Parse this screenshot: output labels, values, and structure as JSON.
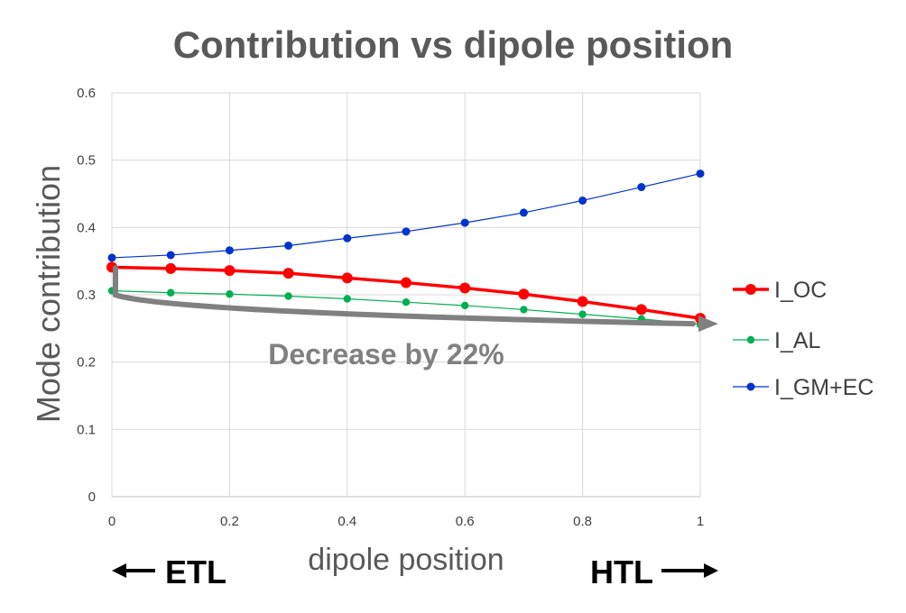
{
  "chart_data": {
    "type": "line",
    "title": "Contribution vs dipole position",
    "xlabel": "dipole position",
    "ylabel": "Mode contribution",
    "xlim": [
      0,
      1
    ],
    "ylim": [
      0,
      0.6
    ],
    "x_ticks": [
      "0",
      "0.2",
      "0.4",
      "0.6",
      "0.8",
      "1"
    ],
    "y_ticks": [
      "0",
      "0.1",
      "0.2",
      "0.3",
      "0.4",
      "0.5",
      "0.6"
    ],
    "grid": true,
    "legend_position": "right",
    "x": [
      0,
      0.1,
      0.2,
      0.3,
      0.4,
      0.5,
      0.6,
      0.7,
      0.8,
      0.9,
      1.0
    ],
    "series": [
      {
        "name": "I_OC",
        "color": "#ff0000",
        "values": [
          0.341,
          0.339,
          0.336,
          0.332,
          0.325,
          0.318,
          0.31,
          0.301,
          0.29,
          0.278,
          0.265
        ]
      },
      {
        "name": "I_AL",
        "color": "#00b050",
        "values": [
          0.306,
          0.303,
          0.301,
          0.298,
          0.294,
          0.289,
          0.284,
          0.278,
          0.271,
          0.264,
          0.256
        ]
      },
      {
        "name": "I_GM+EC",
        "color": "#0033cc",
        "values": [
          0.355,
          0.359,
          0.366,
          0.373,
          0.384,
          0.394,
          0.407,
          0.422,
          0.44,
          0.46,
          0.48
        ]
      }
    ],
    "annotation": {
      "text": "Decrease by 22%",
      "color": "#808080"
    },
    "side_labels": {
      "left": "ETL",
      "right": "HTL"
    }
  }
}
